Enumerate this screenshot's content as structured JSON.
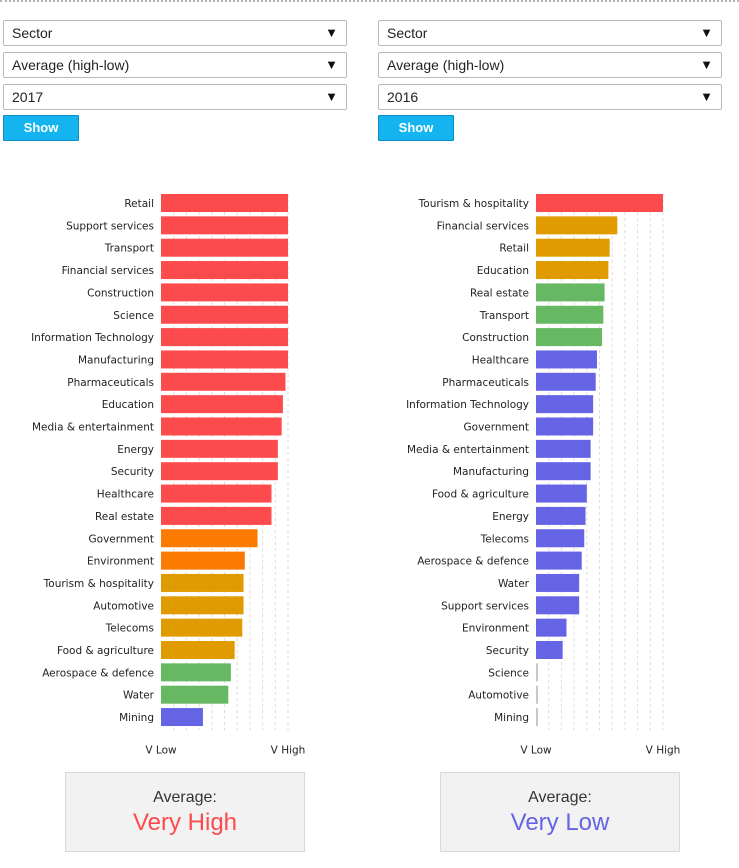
{
  "colors": {
    "very_high": "#fd4a4d",
    "high": "#fd7a00",
    "above_avg": "#e09b00",
    "average": "#66b962",
    "low": "#6464e4",
    "very_low": "#c8c8c8"
  },
  "panels": [
    {
      "dropdowns": [
        {
          "value": "Sector",
          "arrow": "▼"
        },
        {
          "value": "Average (high-low)",
          "arrow": "▼"
        },
        {
          "value": "2017",
          "arrow": "▼"
        }
      ],
      "show_label": "Show",
      "average": {
        "label": "Average:",
        "value": "Very High",
        "color": "#fd4a4d"
      }
    },
    {
      "dropdowns": [
        {
          "value": "Sector",
          "arrow": "▼"
        },
        {
          "value": "Average (high-low)",
          "arrow": "▼"
        },
        {
          "value": "2016",
          "arrow": "▼"
        }
      ],
      "show_label": "Show",
      "average": {
        "label": "Average:",
        "value": "Very Low",
        "color": "#6464e4"
      }
    }
  ],
  "chart_data": [
    {
      "type": "bar",
      "orientation": "horizontal",
      "xlabel_min": "V Low",
      "xlabel_max": "V High",
      "xlim": [
        0,
        1
      ],
      "categories": [
        "Retail",
        "Support services",
        "Transport",
        "Financial services",
        "Construction",
        "Science",
        "Information Technology",
        "Manufacturing",
        "Pharmaceuticals",
        "Education",
        "Media & entertainment",
        "Energy",
        "Security",
        "Healthcare",
        "Real estate",
        "Government",
        "Environment",
        "Tourism & hospitality",
        "Automotive",
        "Telecoms",
        "Food & agriculture",
        "Aerospace & defence",
        "Water",
        "Mining"
      ],
      "values": [
        1.0,
        1.0,
        1.0,
        1.0,
        1.0,
        1.0,
        1.0,
        1.0,
        0.98,
        0.96,
        0.95,
        0.92,
        0.92,
        0.87,
        0.87,
        0.76,
        0.66,
        0.65,
        0.65,
        0.64,
        0.58,
        0.55,
        0.53,
        0.33
      ],
      "bar_colors": [
        "#fd4a4d",
        "#fd4a4d",
        "#fd4a4d",
        "#fd4a4d",
        "#fd4a4d",
        "#fd4a4d",
        "#fd4a4d",
        "#fd4a4d",
        "#fd4a4d",
        "#fd4a4d",
        "#fd4a4d",
        "#fd4a4d",
        "#fd4a4d",
        "#fd4a4d",
        "#fd4a4d",
        "#fd7a00",
        "#fd7a00",
        "#e09b00",
        "#e09b00",
        "#e09b00",
        "#e09b00",
        "#66b962",
        "#66b962",
        "#6464e4"
      ],
      "grid": true
    },
    {
      "type": "bar",
      "orientation": "horizontal",
      "xlabel_min": "V Low",
      "xlabel_max": "V High",
      "xlim": [
        0,
        1
      ],
      "categories": [
        "Tourism & hospitality",
        "Financial services",
        "Retail",
        "Education",
        "Real estate",
        "Transport",
        "Construction",
        "Healthcare",
        "Pharmaceuticals",
        "Information Technology",
        "Government",
        "Media & entertainment",
        "Manufacturing",
        "Food & agriculture",
        "Energy",
        "Telecoms",
        "Aerospace & defence",
        "Water",
        "Support services",
        "Environment",
        "Security",
        "Science",
        "Automotive",
        "Mining"
      ],
      "values": [
        1.0,
        0.64,
        0.58,
        0.57,
        0.54,
        0.53,
        0.52,
        0.48,
        0.47,
        0.45,
        0.45,
        0.43,
        0.43,
        0.4,
        0.39,
        0.38,
        0.36,
        0.34,
        0.34,
        0.24,
        0.21,
        0.01,
        0.01,
        0.01
      ],
      "bar_colors": [
        "#fd4a4d",
        "#e09b00",
        "#e09b00",
        "#e09b00",
        "#66b962",
        "#66b962",
        "#66b962",
        "#6464e4",
        "#6464e4",
        "#6464e4",
        "#6464e4",
        "#6464e4",
        "#6464e4",
        "#6464e4",
        "#6464e4",
        "#6464e4",
        "#6464e4",
        "#6464e4",
        "#6464e4",
        "#6464e4",
        "#6464e4",
        "#c8c8c8",
        "#c8c8c8",
        "#c8c8c8"
      ],
      "grid": true
    }
  ]
}
